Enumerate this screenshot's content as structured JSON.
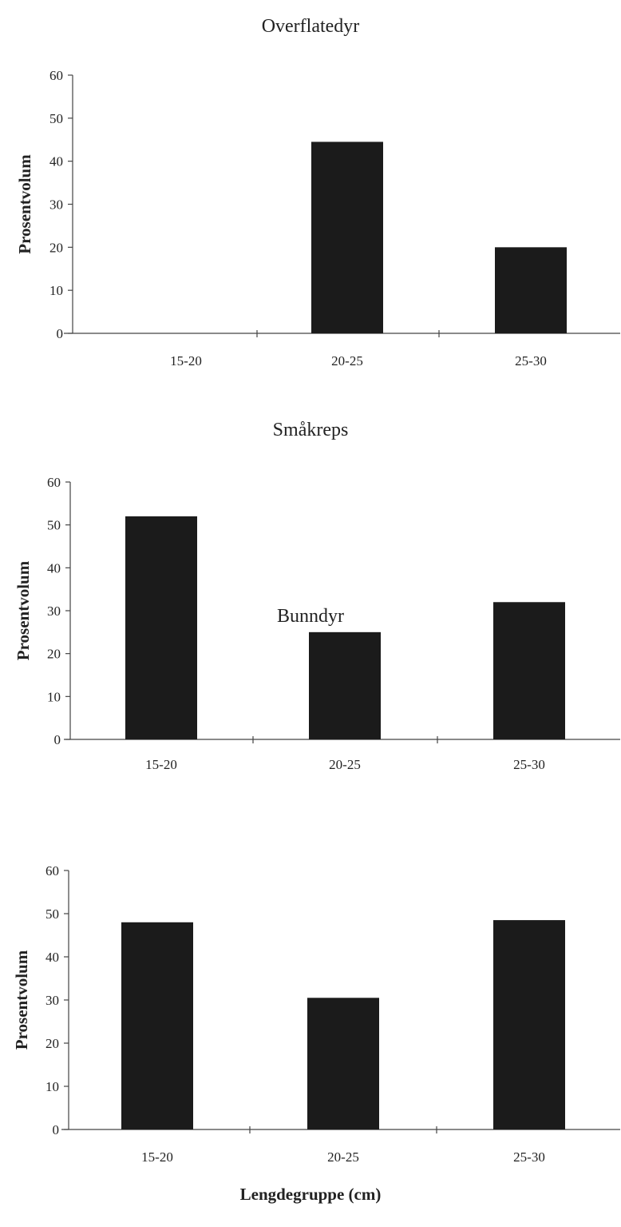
{
  "chart_data": [
    {
      "type": "bar",
      "title": "Overflatedyr",
      "ylabel": "Prosentvolum",
      "xlabel": "",
      "categories": [
        "15-20",
        "20-25",
        "25-30"
      ],
      "values": [
        0,
        44.5,
        20
      ],
      "ylim": [
        0,
        60
      ],
      "yticks": [
        0,
        10,
        20,
        30,
        40,
        50,
        60
      ],
      "grid": false,
      "legend": "none",
      "bar_color": "#1b1b1b"
    },
    {
      "type": "bar",
      "title": "Småkreps",
      "ylabel": "Prosentvolum",
      "xlabel": "",
      "categories": [
        "15-20",
        "20-25",
        "25-30"
      ],
      "values": [
        52,
        25,
        32
      ],
      "ylim": [
        0,
        60
      ],
      "yticks": [
        0,
        10,
        20,
        30,
        40,
        50,
        60
      ],
      "grid": false,
      "legend": "none",
      "bar_color": "#1b1b1b"
    },
    {
      "type": "bar",
      "title": "Bunndyr",
      "ylabel": "Prosentvolum",
      "xlabel": "Lengdegruppe (cm)",
      "categories": [
        "15-20",
        "20-25",
        "25-30"
      ],
      "values": [
        48,
        30.5,
        48.5
      ],
      "ylim": [
        0,
        60
      ],
      "yticks": [
        0,
        10,
        20,
        30,
        40,
        50,
        60
      ],
      "grid": false,
      "legend": "none",
      "bar_color": "#1b1b1b"
    }
  ],
  "shared": {
    "xlabel": "Lengdegruppe (cm)"
  }
}
